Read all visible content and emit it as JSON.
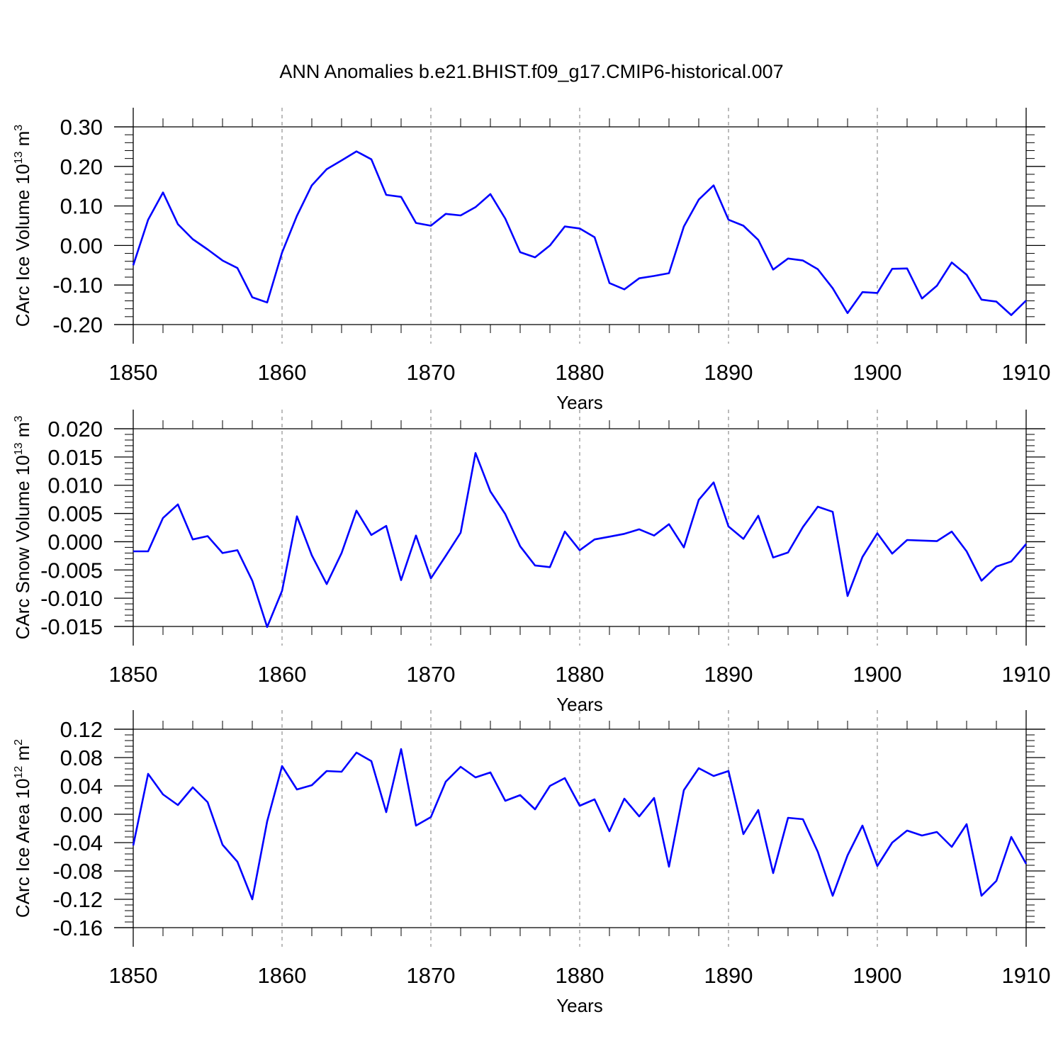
{
  "title": "ANN Anomalies b.e21.BHIST.f09_g17.CMIP6-historical.007",
  "colors": {
    "line": "#0000ff",
    "axis": "#000000",
    "grid": "#777777"
  },
  "chart_data": [
    {
      "type": "line",
      "title": "ANN Anomalies b.e21.BHIST.f09_g17.CMIP6-historical.007",
      "xlabel": "Years",
      "ylabel": {
        "text": "CArc Ice Volume 10",
        "sup1": "13",
        "unit": " m",
        "sup2": "3"
      },
      "xlim": [
        1850,
        1910
      ],
      "ylim": [
        -0.2,
        0.3
      ],
      "xticks": [
        "1850",
        "1860",
        "1870",
        "1880",
        "1890",
        "1900",
        "1910"
      ],
      "yticks": [
        {
          "v": 0.3,
          "label": "0.30"
        },
        {
          "v": 0.2,
          "label": "0.20"
        },
        {
          "v": 0.1,
          "label": "0.10"
        },
        {
          "v": 0.0,
          "label": "0.00"
        },
        {
          "v": -0.1,
          "label": "-0.10"
        },
        {
          "v": -0.2,
          "label": "-0.20"
        }
      ],
      "grid": "dashed at year ticks",
      "series": [
        {
          "name": "CArc Ice Volume",
          "x": [
            1850,
            1851,
            1852,
            1853,
            1854,
            1855,
            1856,
            1857,
            1858,
            1859,
            1860,
            1861,
            1862,
            1863,
            1864,
            1865,
            1866,
            1867,
            1868,
            1869,
            1870,
            1871,
            1872,
            1873,
            1874,
            1875,
            1876,
            1877,
            1878,
            1879,
            1880,
            1881,
            1882,
            1883,
            1884,
            1885,
            1886,
            1887,
            1888,
            1889,
            1890,
            1891,
            1892,
            1893,
            1894,
            1895,
            1896,
            1897,
            1898,
            1899,
            1900,
            1901,
            1902,
            1903,
            1904,
            1905,
            1906,
            1907,
            1908,
            1909,
            1910
          ],
          "values": [
            -0.05,
            0.065,
            0.134,
            0.054,
            0.016,
            -0.01,
            -0.038,
            -0.057,
            -0.131,
            -0.144,
            -0.018,
            0.075,
            0.152,
            0.193,
            0.215,
            0.238,
            0.218,
            0.128,
            0.123,
            0.057,
            0.05,
            0.08,
            0.076,
            0.097,
            0.13,
            0.068,
            -0.017,
            -0.03,
            0.0,
            0.048,
            0.043,
            0.021,
            -0.095,
            -0.111,
            -0.083,
            -0.077,
            -0.07,
            0.048,
            0.116,
            0.152,
            0.065,
            0.05,
            0.014,
            -0.061,
            -0.033,
            -0.038,
            -0.06,
            -0.108,
            -0.171,
            -0.118,
            -0.12,
            -0.059,
            -0.058,
            -0.134,
            -0.102,
            -0.043,
            -0.074,
            -0.137,
            -0.142,
            -0.176,
            -0.139
          ]
        }
      ]
    },
    {
      "type": "line",
      "xlabel": "Years",
      "ylabel": {
        "text": "CArc Snow Volume 10",
        "sup1": "13",
        "unit": " m",
        "sup2": "3"
      },
      "xlim": [
        1850,
        1910
      ],
      "ylim": [
        -0.015,
        0.02
      ],
      "xticks": [
        "1850",
        "1860",
        "1870",
        "1880",
        "1890",
        "1900",
        "1910"
      ],
      "yticks": [
        {
          "v": 0.02,
          "label": "0.020"
        },
        {
          "v": 0.015,
          "label": "0.015"
        },
        {
          "v": 0.01,
          "label": "0.010"
        },
        {
          "v": 0.005,
          "label": "0.005"
        },
        {
          "v": 0.0,
          "label": "0.000"
        },
        {
          "v": -0.005,
          "label": "-0.005"
        },
        {
          "v": -0.01,
          "label": "-0.010"
        },
        {
          "v": -0.015,
          "label": "-0.015"
        }
      ],
      "grid": "dashed at year ticks",
      "series": [
        {
          "name": "CArc Snow Volume",
          "x": [
            1850,
            1851,
            1852,
            1853,
            1854,
            1855,
            1856,
            1857,
            1858,
            1859,
            1860,
            1861,
            1862,
            1863,
            1864,
            1865,
            1866,
            1867,
            1868,
            1869,
            1870,
            1871,
            1872,
            1873,
            1874,
            1875,
            1876,
            1877,
            1878,
            1879,
            1880,
            1881,
            1882,
            1883,
            1884,
            1885,
            1886,
            1887,
            1888,
            1889,
            1890,
            1891,
            1892,
            1893,
            1894,
            1895,
            1896,
            1897,
            1898,
            1899,
            1900,
            1901,
            1902,
            1903,
            1904,
            1905,
            1906,
            1907,
            1908,
            1909,
            1910
          ],
          "values": [
            -0.0017,
            -0.0017,
            0.0042,
            0.0066,
            0.0004,
            0.001,
            -0.002,
            -0.0015,
            -0.0069,
            -0.0151,
            -0.0087,
            0.0045,
            -0.0024,
            -0.0075,
            -0.002,
            0.0055,
            0.0012,
            0.0028,
            -0.0068,
            0.0011,
            -0.0065,
            -0.0025,
            0.0016,
            0.0157,
            0.0089,
            0.0049,
            -0.0008,
            -0.0042,
            -0.0045,
            0.0018,
            -0.0015,
            0.0004,
            0.0009,
            0.0014,
            0.0022,
            0.0011,
            0.0031,
            -0.001,
            0.0074,
            0.0105,
            0.0027,
            0.0005,
            0.0046,
            -0.0028,
            -0.0019,
            0.0026,
            0.0062,
            0.0053,
            -0.0096,
            -0.0027,
            0.0015,
            -0.0021,
            0.0003,
            0.0002,
            0.0001,
            0.0018,
            -0.0017,
            -0.0069,
            -0.0044,
            -0.0035,
            -0.0004
          ]
        }
      ]
    },
    {
      "type": "line",
      "xlabel": "Years",
      "ylabel": {
        "text": "CArc Ice Area 10",
        "sup1": "12",
        "unit": " m",
        "sup2": "2"
      },
      "xlim": [
        1850,
        1910
      ],
      "ylim": [
        -0.16,
        0.12
      ],
      "xticks": [
        "1850",
        "1860",
        "1870",
        "1880",
        "1890",
        "1900",
        "1910"
      ],
      "yticks": [
        {
          "v": 0.12,
          "label": "0.12"
        },
        {
          "v": 0.08,
          "label": "0.08"
        },
        {
          "v": 0.04,
          "label": "0.04"
        },
        {
          "v": 0.0,
          "label": "0.00"
        },
        {
          "v": -0.04,
          "label": "-0.04"
        },
        {
          "v": -0.08,
          "label": "-0.08"
        },
        {
          "v": -0.12,
          "label": "-0.12"
        },
        {
          "v": -0.16,
          "label": "-0.16"
        }
      ],
      "grid": "dashed at year ticks",
      "series": [
        {
          "name": "CArc Ice Area",
          "x": [
            1850,
            1851,
            1852,
            1853,
            1854,
            1855,
            1856,
            1857,
            1858,
            1859,
            1860,
            1861,
            1862,
            1863,
            1864,
            1865,
            1866,
            1867,
            1868,
            1869,
            1870,
            1871,
            1872,
            1873,
            1874,
            1875,
            1876,
            1877,
            1878,
            1879,
            1880,
            1881,
            1882,
            1883,
            1884,
            1885,
            1886,
            1887,
            1888,
            1889,
            1890,
            1891,
            1892,
            1893,
            1894,
            1895,
            1896,
            1897,
            1898,
            1899,
            1900,
            1901,
            1902,
            1903,
            1904,
            1905,
            1906,
            1907,
            1908,
            1909,
            1910
          ],
          "values": [
            -0.044,
            0.057,
            0.028,
            0.013,
            0.038,
            0.017,
            -0.043,
            -0.067,
            -0.12,
            -0.01,
            0.068,
            0.035,
            0.041,
            0.061,
            0.06,
            0.087,
            0.075,
            0.003,
            0.092,
            -0.016,
            -0.004,
            0.046,
            0.067,
            0.052,
            0.059,
            0.019,
            0.027,
            0.007,
            0.04,
            0.051,
            0.012,
            0.021,
            -0.024,
            0.022,
            -0.003,
            0.023,
            -0.074,
            0.034,
            0.065,
            0.054,
            0.061,
            -0.028,
            0.006,
            -0.083,
            -0.005,
            -0.007,
            -0.053,
            -0.115,
            -0.058,
            -0.016,
            -0.073,
            -0.04,
            -0.023,
            -0.03,
            -0.025,
            -0.046,
            -0.014,
            -0.115,
            -0.094,
            -0.032,
            -0.07
          ]
        }
      ]
    }
  ]
}
